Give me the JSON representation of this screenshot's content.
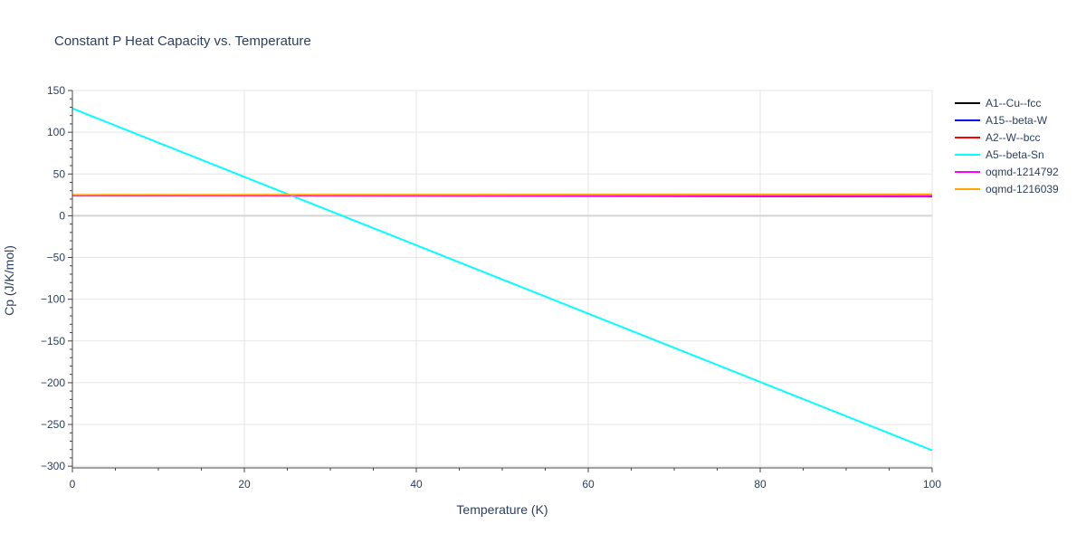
{
  "chart_data": {
    "type": "line",
    "title": "Constant P Heat Capacity vs. Temperature",
    "xlabel": "Temperature (K)",
    "ylabel": "Cp (J/K/mol)",
    "xlim": [
      0,
      100
    ],
    "ylim": [
      -302,
      150
    ],
    "x_ticks": [
      0,
      20,
      40,
      60,
      80,
      100
    ],
    "x_tick_labels": [
      "0",
      "20",
      "40",
      "60",
      "80",
      "100"
    ],
    "y_ticks": [
      150,
      100,
      50,
      0,
      -50,
      -100,
      -150,
      -200,
      -250,
      -300
    ],
    "y_tick_labels": [
      "150",
      "100",
      "50",
      "0",
      "−50",
      "−100",
      "−150",
      "−200",
      "−250",
      "−300"
    ],
    "grid": true,
    "legend_position": "right",
    "series": [
      {
        "name": "A1--Cu--fcc",
        "color": "#000000",
        "x": [
          0,
          100
        ],
        "y": [
          24.5,
          24.2
        ]
      },
      {
        "name": "A15--beta-W",
        "color": "#0000ff",
        "x": [
          0,
          100
        ],
        "y": [
          24.4,
          24.1
        ]
      },
      {
        "name": "A2--W--bcc",
        "color": "#ff0000",
        "x": [
          0,
          100
        ],
        "y": [
          24.6,
          23.0
        ]
      },
      {
        "name": "A5--beta-Sn",
        "color": "#00ffff",
        "x": [
          0,
          100
        ],
        "y": [
          128.5,
          -281
        ]
      },
      {
        "name": "oqmd-1214792",
        "color": "#ff00ff",
        "x": [
          0,
          100
        ],
        "y": [
          24.7,
          24.3
        ]
      },
      {
        "name": "oqmd-1216039",
        "color": "#ffa500",
        "x": [
          0,
          100
        ],
        "y": [
          25.0,
          25.6
        ]
      }
    ]
  }
}
